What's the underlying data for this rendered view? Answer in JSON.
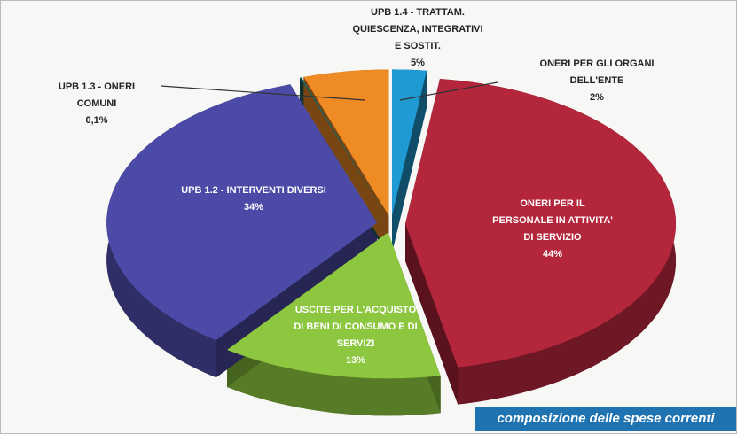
{
  "chart_data": {
    "type": "pie",
    "title": "composizione delle spese correnti",
    "categories": [
      "ONERI PER GLI ORGANI DELL'ENTE",
      "ONERI PER IL PERSONALE IN ATTIVITA' DI SERVIZIO",
      "USCITE PER L'ACQUISTO DI BENI DI CONSUMO E DI SERVIZI",
      "UPB 1.2 - INTERVENTI DIVERSI",
      "UPB 1.3 - ONERI COMUNI",
      "UPB 1.4 - TRATTAM. QUIESCENZA, INTEGRATIVI E SOSTIT."
    ],
    "values": [
      2,
      44,
      13,
      34,
      0.1,
      5
    ],
    "value_labels": [
      "2%",
      "44%",
      "13%",
      "34%",
      "0,1%",
      "5%"
    ],
    "colors": [
      "#1f9ad2",
      "#b3263c",
      "#8dc63f",
      "#4b4aa6",
      "#1b5f5c",
      "#ef8b25"
    ]
  }
}
